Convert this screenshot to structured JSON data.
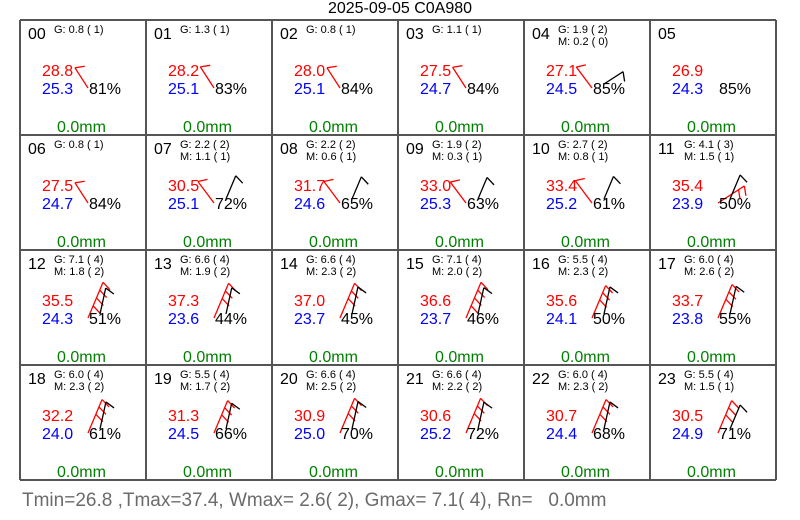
{
  "title": "2025-09-05 C0A980",
  "summary": "Tmin=26.8 ,Tmax=37.4, Wmax= 2.6( 2), Gmax= 7.1( 4), Rn=   0.0mm",
  "colors": {
    "temperature": "#ff0000",
    "dewpoint": "#0000ff",
    "rain": "#008000",
    "grid": "#555555",
    "barb_mean": "#000000",
    "barb_gust": "#ff0000",
    "summary": "#6b6b6b"
  },
  "chart_data": {
    "type": "table",
    "title": "2025-09-05 C0A980",
    "hours": [
      {
        "hour": "00",
        "gust": "G: 0.8 ( 1)",
        "mean": "",
        "temp": "28.8",
        "dew": "25.3",
        "rh": "81%",
        "rain": "0.0mm",
        "mean_wind": null,
        "gust_wind": [
          0.8,
          1
        ]
      },
      {
        "hour": "01",
        "gust": "G: 1.3 ( 1)",
        "mean": "",
        "temp": "28.2",
        "dew": "25.1",
        "rh": "83%",
        "rain": "0.0mm",
        "mean_wind": null,
        "gust_wind": [
          1.3,
          1
        ]
      },
      {
        "hour": "02",
        "gust": "G: 0.8 ( 1)",
        "mean": "",
        "temp": "28.0",
        "dew": "25.1",
        "rh": "84%",
        "rain": "0.0mm",
        "mean_wind": null,
        "gust_wind": [
          0.8,
          1
        ]
      },
      {
        "hour": "03",
        "gust": "G: 1.1 ( 1)",
        "mean": "",
        "temp": "27.5",
        "dew": "24.7",
        "rh": "84%",
        "rain": "0.0mm",
        "mean_wind": null,
        "gust_wind": [
          1.1,
          1
        ]
      },
      {
        "hour": "04",
        "gust": "G: 1.9 ( 2)",
        "mean": "M: 0.2 ( 0)",
        "temp": "27.1",
        "dew": "24.5",
        "rh": "85%",
        "rain": "0.0mm",
        "mean_wind": [
          0.2,
          0
        ],
        "gust_wind": [
          1.9,
          2
        ]
      },
      {
        "hour": "05",
        "gust": "",
        "mean": "",
        "temp": "26.9",
        "dew": "24.3",
        "rh": "85%",
        "rain": "0.0mm",
        "mean_wind": null,
        "gust_wind": null
      },
      {
        "hour": "06",
        "gust": "G: 0.8 ( 1)",
        "mean": "",
        "temp": "27.5",
        "dew": "24.7",
        "rh": "84%",
        "rain": "0.0mm",
        "mean_wind": null,
        "gust_wind": [
          0.8,
          1
        ]
      },
      {
        "hour": "07",
        "gust": "G: 2.2 ( 2)",
        "mean": "M: 1.1 ( 1)",
        "temp": "30.5",
        "dew": "25.1",
        "rh": "72%",
        "rain": "0.0mm",
        "mean_wind": [
          1.1,
          1
        ],
        "gust_wind": [
          2.2,
          2
        ]
      },
      {
        "hour": "08",
        "gust": "G: 2.2 ( 2)",
        "mean": "M: 0.6 ( 1)",
        "temp": "31.7",
        "dew": "24.6",
        "rh": "65%",
        "rain": "0.0mm",
        "mean_wind": [
          0.6,
          1
        ],
        "gust_wind": [
          2.2,
          2
        ]
      },
      {
        "hour": "09",
        "gust": "G: 1.9 ( 2)",
        "mean": "M: 0.3 ( 1)",
        "temp": "33.0",
        "dew": "25.3",
        "rh": "63%",
        "rain": "0.0mm",
        "mean_wind": [
          0.3,
          1
        ],
        "gust_wind": [
          1.9,
          2
        ]
      },
      {
        "hour": "10",
        "gust": "G: 2.7 ( 2)",
        "mean": "M: 0.8 ( 1)",
        "temp": "33.4",
        "dew": "25.2",
        "rh": "61%",
        "rain": "0.0mm",
        "mean_wind": [
          0.8,
          1
        ],
        "gust_wind": [
          2.7,
          2
        ]
      },
      {
        "hour": "11",
        "gust": "G: 4.1 ( 3)",
        "mean": "M: 1.5 ( 1)",
        "temp": "35.4",
        "dew": "23.9",
        "rh": "50%",
        "rain": "0.0mm",
        "mean_wind": [
          1.5,
          1
        ],
        "gust_wind": [
          4.1,
          3
        ]
      },
      {
        "hour": "12",
        "gust": "G: 7.1 ( 4)",
        "mean": "M: 1.8 ( 2)",
        "temp": "35.5",
        "dew": "24.3",
        "rh": "51%",
        "rain": "0.0mm",
        "mean_wind": [
          1.8,
          2
        ],
        "gust_wind": [
          7.1,
          4
        ]
      },
      {
        "hour": "13",
        "gust": "G: 6.6 ( 4)",
        "mean": "M: 1.9 ( 2)",
        "temp": "37.3",
        "dew": "23.6",
        "rh": "44%",
        "rain": "0.0mm",
        "mean_wind": [
          1.9,
          2
        ],
        "gust_wind": [
          6.6,
          4
        ]
      },
      {
        "hour": "14",
        "gust": "G: 6.6 ( 4)",
        "mean": "M: 2.3 ( 2)",
        "temp": "37.0",
        "dew": "23.7",
        "rh": "45%",
        "rain": "0.0mm",
        "mean_wind": [
          2.3,
          2
        ],
        "gust_wind": [
          6.6,
          4
        ]
      },
      {
        "hour": "15",
        "gust": "G: 7.1 ( 4)",
        "mean": "M: 2.0 ( 2)",
        "temp": "36.6",
        "dew": "23.7",
        "rh": "46%",
        "rain": "0.0mm",
        "mean_wind": [
          2.0,
          2
        ],
        "gust_wind": [
          7.1,
          4
        ]
      },
      {
        "hour": "16",
        "gust": "G: 5.5 ( 4)",
        "mean": "M: 2.3 ( 2)",
        "temp": "35.6",
        "dew": "24.1",
        "rh": "50%",
        "rain": "0.0mm",
        "mean_wind": [
          2.3,
          2
        ],
        "gust_wind": [
          5.5,
          4
        ]
      },
      {
        "hour": "17",
        "gust": "G: 6.0 ( 4)",
        "mean": "M: 2.6 ( 2)",
        "temp": "33.7",
        "dew": "23.8",
        "rh": "55%",
        "rain": "0.0mm",
        "mean_wind": [
          2.6,
          2
        ],
        "gust_wind": [
          6.0,
          4
        ]
      },
      {
        "hour": "18",
        "gust": "G: 6.0 ( 4)",
        "mean": "M: 2.3 ( 2)",
        "temp": "32.2",
        "dew": "24.0",
        "rh": "61%",
        "rain": "0.0mm",
        "mean_wind": [
          2.3,
          2
        ],
        "gust_wind": [
          6.0,
          4
        ]
      },
      {
        "hour": "19",
        "gust": "G: 5.5 ( 4)",
        "mean": "M: 1.7 ( 2)",
        "temp": "31.3",
        "dew": "24.5",
        "rh": "66%",
        "rain": "0.0mm",
        "mean_wind": [
          1.7,
          2
        ],
        "gust_wind": [
          5.5,
          4
        ]
      },
      {
        "hour": "20",
        "gust": "G: 6.6 ( 4)",
        "mean": "M: 2.5 ( 2)",
        "temp": "30.9",
        "dew": "25.0",
        "rh": "70%",
        "rain": "0.0mm",
        "mean_wind": [
          2.5,
          2
        ],
        "gust_wind": [
          6.6,
          4
        ]
      },
      {
        "hour": "21",
        "gust": "G: 6.6 ( 4)",
        "mean": "M: 2.2 ( 2)",
        "temp": "30.6",
        "dew": "25.2",
        "rh": "72%",
        "rain": "0.0mm",
        "mean_wind": [
          2.2,
          2
        ],
        "gust_wind": [
          6.6,
          4
        ]
      },
      {
        "hour": "22",
        "gust": "G: 6.0 ( 4)",
        "mean": "M: 2.3 ( 2)",
        "temp": "30.7",
        "dew": "24.4",
        "rh": "68%",
        "rain": "0.0mm",
        "mean_wind": [
          2.3,
          2
        ],
        "gust_wind": [
          6.0,
          4
        ]
      },
      {
        "hour": "23",
        "gust": "G: 5.5 ( 4)",
        "mean": "M: 1.5 ( 1)",
        "temp": "30.5",
        "dew": "24.9",
        "rh": "71%",
        "rain": "0.0mm",
        "mean_wind": [
          1.5,
          1
        ],
        "gust_wind": [
          5.5,
          4
        ]
      }
    ]
  }
}
